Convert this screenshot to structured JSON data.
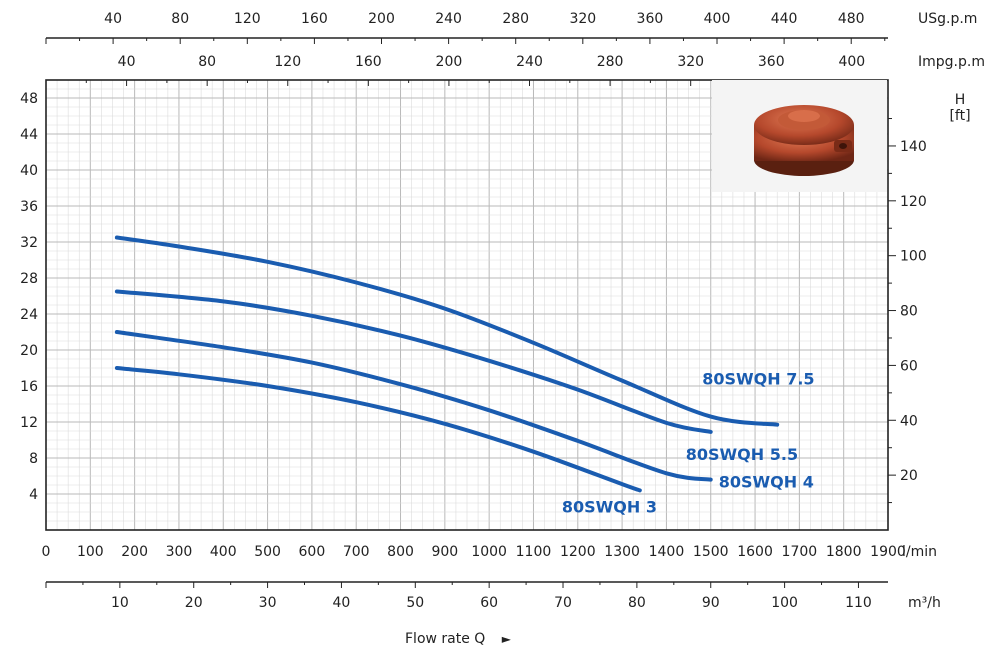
{
  "chart_data": {
    "type": "line",
    "xlabel": "Flow rate Q",
    "x_unit": "l/min",
    "xlim": [
      0,
      1900
    ],
    "x_ticks": [
      0,
      100,
      200,
      300,
      400,
      500,
      600,
      700,
      800,
      900,
      1000,
      1100,
      1200,
      1300,
      1400,
      1500,
      1600,
      1700,
      1800,
      1900
    ],
    "ylabel_left": "",
    "ylim": [
      0,
      50
    ],
    "y_ticks": [
      4,
      8,
      12,
      16,
      20,
      24,
      28,
      32,
      36,
      40,
      44,
      48
    ],
    "right_axis": {
      "label": "H",
      "unit": "[ft]",
      "ticks": [
        20,
        40,
        60,
        80,
        100,
        120,
        140
      ]
    },
    "top_axis_usgpm": {
      "unit": "USg.p.m",
      "ticks": [
        40,
        80,
        120,
        160,
        200,
        240,
        280,
        320,
        360,
        400,
        440,
        480
      ]
    },
    "top_axis_impgpm": {
      "unit": "Impg.p.m",
      "ticks": [
        40,
        80,
        120,
        160,
        200,
        240,
        280,
        320,
        360,
        400
      ]
    },
    "bottom_axis_m3h": {
      "unit": "m³/h",
      "ticks": [
        10,
        20,
        30,
        40,
        50,
        60,
        70,
        80,
        90,
        100,
        110
      ]
    },
    "series": [
      {
        "name": "80SWQH 7.5",
        "color": "#1a5cb0",
        "x": [
          160,
          300,
          500,
          700,
          900,
          1100,
          1300,
          1500,
          1650
        ],
        "y": [
          32.5,
          31.5,
          29.8,
          27.5,
          24.6,
          20.8,
          16.6,
          12.6,
          11.7
        ]
      },
      {
        "name": "80SWQH 5.5",
        "color": "#1a5cb0",
        "x": [
          160,
          400,
          600,
          800,
          1000,
          1200,
          1400,
          1500
        ],
        "y": [
          26.5,
          25.4,
          23.8,
          21.6,
          18.8,
          15.6,
          11.9,
          10.9
        ]
      },
      {
        "name": "80SWQH 4",
        "color": "#1a5cb0",
        "x": [
          160,
          400,
          600,
          800,
          1000,
          1200,
          1400,
          1500
        ],
        "y": [
          22.0,
          20.3,
          18.6,
          16.2,
          13.3,
          9.9,
          6.3,
          5.6
        ]
      },
      {
        "name": "80SWQH 3",
        "color": "#1a5cb0",
        "x": [
          160,
          300,
          500,
          700,
          900,
          1100,
          1300,
          1340
        ],
        "y": [
          18.0,
          17.3,
          16.0,
          14.2,
          11.8,
          8.7,
          5.1,
          4.4
        ]
      }
    ]
  },
  "flow_label": "Flow rate Q",
  "flow_arrow": "►",
  "photo": {
    "icon": "pump-impeller-photo",
    "color": "#b5482c"
  }
}
